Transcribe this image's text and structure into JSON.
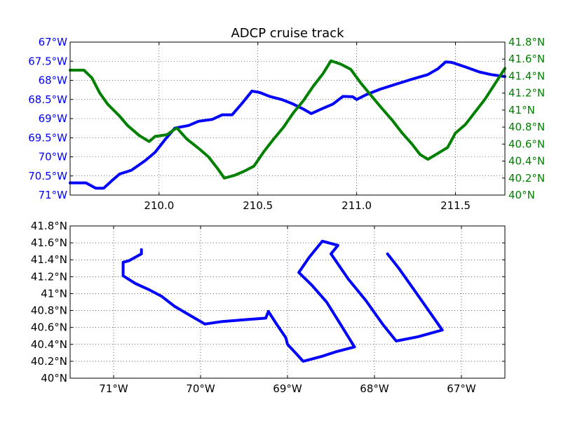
{
  "chart_data": [
    {
      "type": "line",
      "title": "ADCP cruise track",
      "x_axis": {
        "range": [
          209.55,
          211.75
        ],
        "ticks": [
          {
            "value": 210.0,
            "label": "210.0"
          },
          {
            "value": 210.5,
            "label": "210.5"
          },
          {
            "value": 211.0,
            "label": "211.0"
          },
          {
            "value": 211.5,
            "label": "211.5"
          }
        ]
      },
      "y_left": {
        "color": "#0000ff",
        "range": [
          -71,
          -67
        ],
        "ticks": [
          {
            "value": -67.0,
            "label": "67°W"
          },
          {
            "value": -67.5,
            "label": "67.5°W"
          },
          {
            "value": -68.0,
            "label": "68°W"
          },
          {
            "value": -68.5,
            "label": "68.5°W"
          },
          {
            "value": -69.0,
            "label": "69°W"
          },
          {
            "value": -69.5,
            "label": "69.5°W"
          },
          {
            "value": -70.0,
            "label": "70°W"
          },
          {
            "value": -70.5,
            "label": "70.5°W"
          },
          {
            "value": -71.0,
            "label": "71°W"
          }
        ]
      },
      "y_right": {
        "color": "#008000",
        "range": [
          40.0,
          41.8
        ],
        "ticks": [
          {
            "value": 40.0,
            "label": "40°N"
          },
          {
            "value": 40.2,
            "label": "40.2°N"
          },
          {
            "value": 40.4,
            "label": "40.4°N"
          },
          {
            "value": 40.6,
            "label": "40.6°N"
          },
          {
            "value": 40.8,
            "label": "40.8°N"
          },
          {
            "value": 41.0,
            "label": "41°N"
          },
          {
            "value": 41.2,
            "label": "41.2°N"
          },
          {
            "value": 41.4,
            "label": "41.4°N"
          },
          {
            "value": 41.6,
            "label": "41.6°N"
          },
          {
            "value": 41.8,
            "label": "41.8°N"
          }
        ]
      },
      "grid": true,
      "series": [
        {
          "axis": "left",
          "color": "#0000ff",
          "points": [
            [
              209.55,
              -70.68
            ],
            [
              209.63,
              -70.68
            ],
            [
              209.68,
              -70.82
            ],
            [
              209.72,
              -70.82
            ],
            [
              209.76,
              -70.63
            ],
            [
              209.8,
              -70.45
            ],
            [
              209.86,
              -70.35
            ],
            [
              209.93,
              -70.1
            ],
            [
              209.98,
              -69.88
            ],
            [
              210.03,
              -69.55
            ],
            [
              210.08,
              -69.25
            ],
            [
              210.15,
              -69.18
            ],
            [
              210.2,
              -69.07
            ],
            [
              210.27,
              -69.02
            ],
            [
              210.32,
              -68.9
            ],
            [
              210.37,
              -68.9
            ],
            [
              210.42,
              -68.6
            ],
            [
              210.47,
              -68.28
            ],
            [
              210.51,
              -68.32
            ],
            [
              210.56,
              -68.42
            ],
            [
              210.62,
              -68.5
            ],
            [
              210.67,
              -68.6
            ],
            [
              210.73,
              -68.75
            ],
            [
              210.77,
              -68.87
            ],
            [
              210.83,
              -68.73
            ],
            [
              210.88,
              -68.62
            ],
            [
              210.93,
              -68.42
            ],
            [
              210.98,
              -68.43
            ],
            [
              211.0,
              -68.5
            ],
            [
              211.05,
              -68.37
            ],
            [
              211.12,
              -68.23
            ],
            [
              211.2,
              -68.1
            ],
            [
              211.28,
              -67.97
            ],
            [
              211.36,
              -67.85
            ],
            [
              211.41,
              -67.7
            ],
            [
              211.45,
              -67.52
            ],
            [
              211.48,
              -67.53
            ],
            [
              211.55,
              -67.65
            ],
            [
              211.62,
              -67.78
            ],
            [
              211.68,
              -67.85
            ],
            [
              211.75,
              -67.9
            ]
          ]
        },
        {
          "axis": "right",
          "color": "#008000",
          "points": [
            [
              209.55,
              41.47
            ],
            [
              209.62,
              41.47
            ],
            [
              209.66,
              41.38
            ],
            [
              209.7,
              41.2
            ],
            [
              209.74,
              41.07
            ],
            [
              209.8,
              40.93
            ],
            [
              209.84,
              40.82
            ],
            [
              209.9,
              40.7
            ],
            [
              209.95,
              40.63
            ],
            [
              209.98,
              40.69
            ],
            [
              210.04,
              40.71
            ],
            [
              210.07,
              40.76
            ],
            [
              210.09,
              40.79
            ],
            [
              210.14,
              40.66
            ],
            [
              210.2,
              40.55
            ],
            [
              210.25,
              40.45
            ],
            [
              210.3,
              40.3
            ],
            [
              210.33,
              40.2
            ],
            [
              210.38,
              40.23
            ],
            [
              210.43,
              40.28
            ],
            [
              210.48,
              40.34
            ],
            [
              210.53,
              40.51
            ],
            [
              210.58,
              40.66
            ],
            [
              210.63,
              40.8
            ],
            [
              210.68,
              40.97
            ],
            [
              210.73,
              41.11
            ],
            [
              210.78,
              41.28
            ],
            [
              210.83,
              41.43
            ],
            [
              210.87,
              41.58
            ],
            [
              210.92,
              41.54
            ],
            [
              210.97,
              41.48
            ],
            [
              211.02,
              41.32
            ],
            [
              211.07,
              41.18
            ],
            [
              211.12,
              41.04
            ],
            [
              211.18,
              40.88
            ],
            [
              211.23,
              40.73
            ],
            [
              211.28,
              40.6
            ],
            [
              211.32,
              40.48
            ],
            [
              211.36,
              40.42
            ],
            [
              211.41,
              40.49
            ],
            [
              211.46,
              40.56
            ],
            [
              211.5,
              40.73
            ],
            [
              211.55,
              40.83
            ],
            [
              211.6,
              40.98
            ],
            [
              211.65,
              41.13
            ],
            [
              211.7,
              41.31
            ],
            [
              211.75,
              41.49
            ]
          ]
        }
      ]
    },
    {
      "type": "line",
      "title": "",
      "x_axis": {
        "range": [
          -71.5,
          -66.5
        ],
        "ticks": [
          {
            "value": -71.0,
            "label": "71°W"
          },
          {
            "value": -70.0,
            "label": "70°W"
          },
          {
            "value": -69.0,
            "label": "69°W"
          },
          {
            "value": -68.0,
            "label": "68°W"
          },
          {
            "value": -67.0,
            "label": "67°W"
          }
        ]
      },
      "y_left": {
        "color": "#000000",
        "range": [
          40.0,
          41.8
        ],
        "ticks": [
          {
            "value": 40.0,
            "label": "40°N"
          },
          {
            "value": 40.2,
            "label": "40.2°N"
          },
          {
            "value": 40.4,
            "label": "40.4°N"
          },
          {
            "value": 40.6,
            "label": "40.6°N"
          },
          {
            "value": 40.8,
            "label": "40.8°N"
          },
          {
            "value": 41.0,
            "label": "41°N"
          },
          {
            "value": 41.2,
            "label": "41.2°N"
          },
          {
            "value": 41.4,
            "label": "41.4°N"
          },
          {
            "value": 41.6,
            "label": "41.6°N"
          },
          {
            "value": 41.8,
            "label": "41.8°N"
          }
        ]
      },
      "grid": true,
      "series": [
        {
          "axis": "left",
          "color": "#0000ff",
          "points": [
            [
              -70.68,
              41.52
            ],
            [
              -70.68,
              41.47
            ],
            [
              -70.82,
              41.39
            ],
            [
              -70.89,
              41.37
            ],
            [
              -70.89,
              41.21
            ],
            [
              -70.75,
              41.12
            ],
            [
              -70.6,
              41.05
            ],
            [
              -70.45,
              40.97
            ],
            [
              -70.3,
              40.85
            ],
            [
              -70.1,
              40.73
            ],
            [
              -69.95,
              40.64
            ],
            [
              -69.75,
              40.67
            ],
            [
              -69.5,
              40.69
            ],
            [
              -69.25,
              40.71
            ],
            [
              -69.22,
              40.79
            ],
            [
              -69.12,
              40.63
            ],
            [
              -69.02,
              40.48
            ],
            [
              -69.0,
              40.4
            ],
            [
              -68.9,
              40.29
            ],
            [
              -68.82,
              40.2
            ],
            [
              -68.6,
              40.26
            ],
            [
              -68.45,
              40.31
            ],
            [
              -68.23,
              40.37
            ],
            [
              -68.38,
              40.62
            ],
            [
              -68.55,
              40.9
            ],
            [
              -68.72,
              41.1
            ],
            [
              -68.87,
              41.25
            ],
            [
              -68.75,
              41.43
            ],
            [
              -68.6,
              41.62
            ],
            [
              -68.42,
              41.57
            ],
            [
              -68.5,
              41.47
            ],
            [
              -68.3,
              41.17
            ],
            [
              -68.1,
              40.92
            ],
            [
              -67.9,
              40.63
            ],
            [
              -67.75,
              40.44
            ],
            [
              -67.5,
              40.49
            ],
            [
              -67.22,
              40.57
            ],
            [
              -67.5,
              40.98
            ],
            [
              -67.72,
              41.3
            ],
            [
              -67.85,
              41.47
            ]
          ]
        }
      ]
    }
  ]
}
